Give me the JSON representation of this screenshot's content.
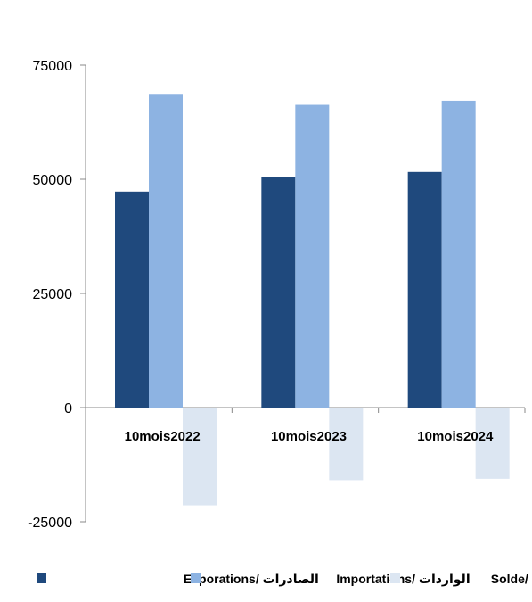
{
  "chart_data": {
    "type": "bar",
    "title": "",
    "xlabel": "",
    "ylabel": "",
    "categories": [
      "10mois2022",
      "10mois2023",
      "10mois2024"
    ],
    "series": [
      {
        "name": "الصادرات /Exporations",
        "values": [
          47300,
          50400,
          51600
        ],
        "color": "#1f497d"
      },
      {
        "name": "الواردات /Importations",
        "values": [
          68700,
          66300,
          67200
        ],
        "color": "#8db3e2"
      },
      {
        "name": "الحصيلة /Solde",
        "values": [
          -21400,
          -15900,
          -15600
        ],
        "color": "#dce6f2"
      }
    ],
    "ylim": [
      -25000,
      75000
    ],
    "yticks": [
      -25000,
      0,
      25000,
      50000,
      75000
    ],
    "ytick_labels": [
      "-25000",
      "0",
      "25000",
      "50000",
      "75000"
    ],
    "grid": false,
    "legend_position": "bottom"
  }
}
